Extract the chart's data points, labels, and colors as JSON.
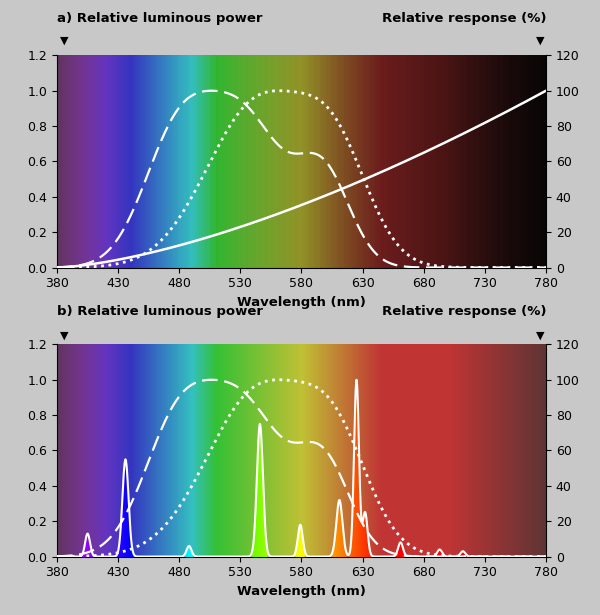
{
  "xlim": [
    380,
    780
  ],
  "ylim": [
    0,
    1.2
  ],
  "ylim2": [
    0,
    120
  ],
  "yticks": [
    0.0,
    0.2,
    0.4,
    0.6,
    0.8,
    1.0,
    1.2
  ],
  "yticks2": [
    0,
    20,
    40,
    60,
    80,
    100,
    120
  ],
  "xticks": [
    380,
    430,
    480,
    530,
    580,
    630,
    680,
    730,
    780
  ],
  "xlabel": "Wavelength (nm)",
  "title_a_left": "a) Relative luminous power",
  "title_a_right": "Relative response (%)",
  "title_b_left": "b) Relative luminous power",
  "title_b_right": "Relative response (%)",
  "fig_bg": "#c8c8c8"
}
